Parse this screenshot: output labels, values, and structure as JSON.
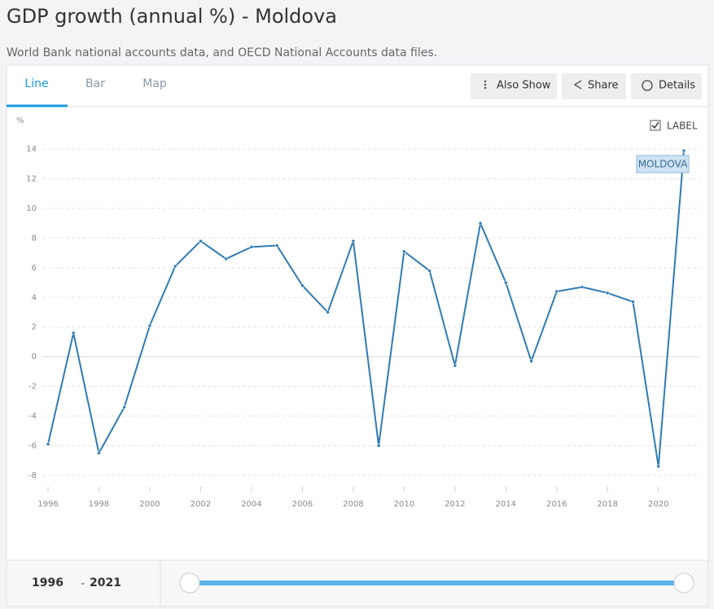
{
  "chart_data": {
    "type": "line",
    "title": "GDP growth (annual %) - Moldova",
    "subtitle": "World Bank national accounts data, and OECD National Accounts data files.",
    "ylabel": "%",
    "x": [
      1996,
      1997,
      1998,
      1999,
      2000,
      2001,
      2002,
      2003,
      2004,
      2005,
      2006,
      2007,
      2008,
      2009,
      2010,
      2011,
      2012,
      2013,
      2014,
      2015,
      2016,
      2017,
      2018,
      2019,
      2020,
      2021
    ],
    "series": [
      {
        "name": "MOLDOVA",
        "color": "#2f7bb3",
        "values": [
          -5.9,
          1.6,
          -6.5,
          -3.4,
          2.1,
          6.1,
          7.8,
          6.6,
          7.4,
          7.5,
          4.8,
          3.0,
          7.8,
          -6.0,
          7.1,
          5.8,
          -0.6,
          9.0,
          5.0,
          -0.3,
          4.4,
          4.7,
          4.3,
          3.7,
          -7.4,
          13.9
        ]
      }
    ],
    "xlim": [
      1995.8,
      2021.8
    ],
    "xticks": [
      1996,
      1998,
      2000,
      2002,
      2004,
      2006,
      2008,
      2010,
      2012,
      2014,
      2016,
      2018,
      2020
    ],
    "ylim": [
      -9,
      15
    ],
    "yticks": [
      -8,
      -6,
      -4,
      -2,
      0,
      2,
      4,
      6,
      8,
      10,
      12,
      14
    ],
    "grid": true
  },
  "ui": {
    "tabs": [
      "Line",
      "Bar",
      "Map"
    ],
    "buttons": [
      "Also Show",
      "Share",
      "Details"
    ],
    "label_toggle": "LABEL",
    "range": {
      "start": "1996",
      "separator": "-",
      "end": "2021"
    }
  }
}
